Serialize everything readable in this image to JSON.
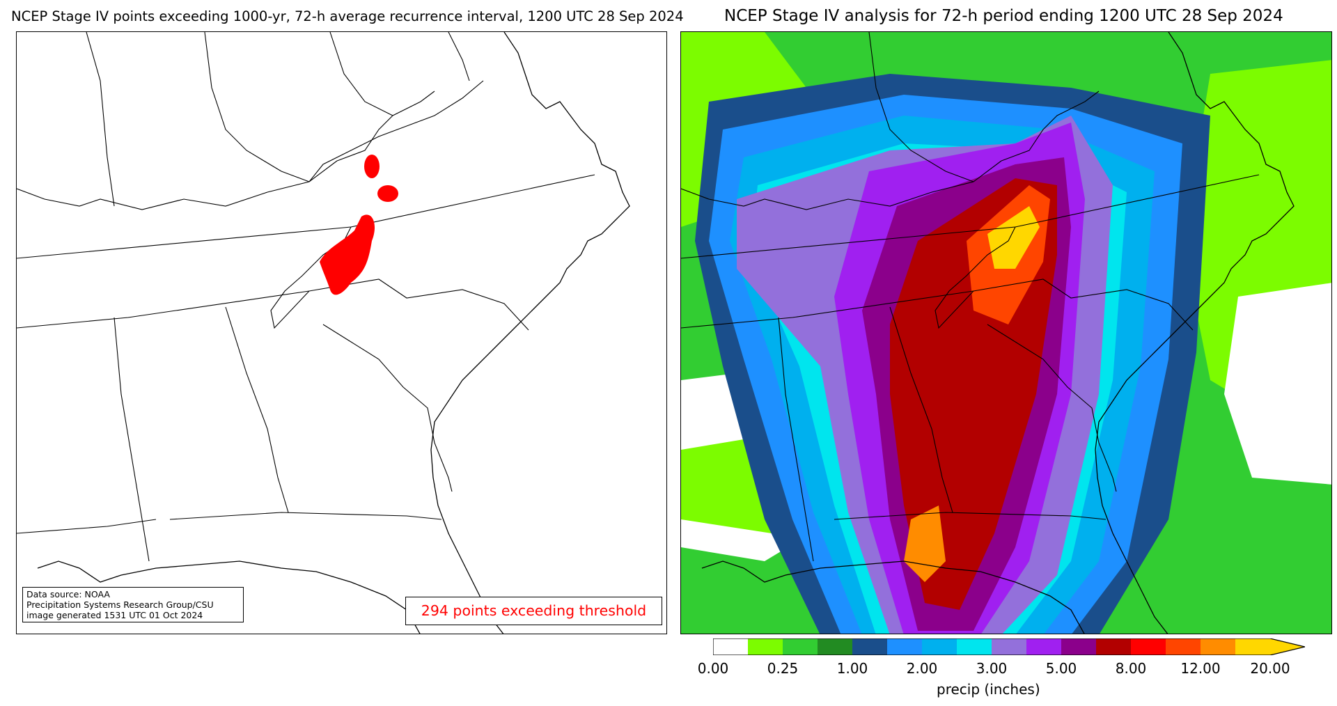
{
  "left_panel": {
    "title": "NCEP Stage IV points exceeding 1000-yr, 72-h average recurrence interval, 1200 UTC 28 Sep 2024",
    "source_lines": [
      "Data source: NOAA",
      "Precipitation Systems Research Group/CSU",
      "image generated 1531 UTC 01 Oct 2024"
    ],
    "count_text": "294 points exceeding threshold",
    "exceed_color": "#ff0000"
  },
  "right_panel": {
    "title": "NCEP Stage IV analysis for 72-h period ending 1200 UTC 28 Sep 2024"
  },
  "colorbar": {
    "label": "precip (inches)",
    "tick_labels": [
      "0.00",
      "0.25",
      "1.00",
      "2.00",
      "3.00",
      "5.00",
      "8.00",
      "12.00",
      "20.00"
    ],
    "colors": [
      "#ffffff",
      "#7cfc00",
      "#32cd32",
      "#228b22",
      "#1a4e8b",
      "#1e90ff",
      "#00b0ee",
      "#00e5ee",
      "#9370db",
      "#a020f0",
      "#8b008b",
      "#b20000",
      "#ff0000",
      "#ff4500",
      "#ff8c00",
      "#ffd700"
    ]
  }
}
